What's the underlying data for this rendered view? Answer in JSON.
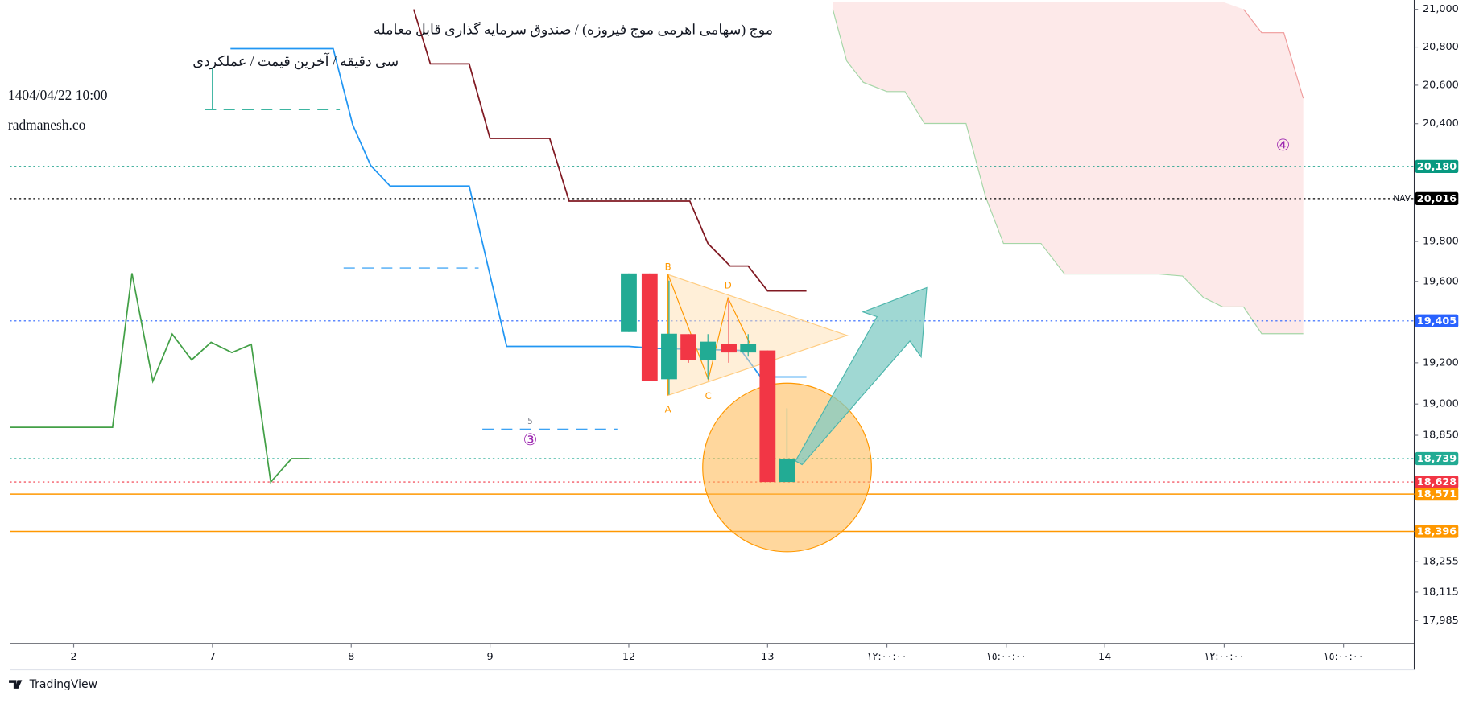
{
  "chart_data": {
    "type": "candlestick",
    "title": "موج (سهامی اهرمی موج فیروزه) / صندوق سرمایه گذاری قابل معامله",
    "subtitle": "سی دقیقه / آخرین قیمت / عملکردی",
    "date": "1404/04/22 10:00",
    "source": "radmanesh.co",
    "brand": "TradingView",
    "x": [
      4.0,
      4.15,
      4.29,
      4.43,
      4.57,
      4.72,
      4.86,
      5.0,
      5.14
    ],
    "open": [
      19350,
      19640,
      19120,
      19340,
      19213,
      19290,
      19250,
      19260,
      18628
    ],
    "high": [
      19640,
      19640,
      19604,
      19340,
      19340,
      19510,
      19340,
      19260,
      18980
    ],
    "low": [
      19350,
      19110,
      19045,
      19200,
      19120,
      19200,
      19230,
      18628,
      18628
    ],
    "close": [
      19640,
      19110,
      19342,
      19213,
      19303,
      19250,
      19290,
      18628,
      18739
    ],
    "up_color": "#22ab94",
    "down_color": "#f23645",
    "lines": [
      {
        "color": "#2196f3",
        "x": [
          1.13,
          1.87,
          2.01,
          2.14,
          2.28,
          2.85,
          3.12,
          4.0,
          4.2,
          4.81,
          4.95,
          5.28
        ],
        "values": [
          20792,
          20792,
          20396,
          20185,
          20080,
          20080,
          19280,
          19280,
          19270,
          19260,
          19131,
          19131
        ]
      },
      {
        "color": "#801922",
        "x": [
          2.45,
          2.57,
          2.85,
          3.0,
          3.43,
          3.57,
          4.44,
          4.57,
          4.73,
          4.86,
          5.0,
          5.28
        ],
        "values": [
          21000,
          20712,
          20712,
          20324,
          20324,
          20003,
          20003,
          19790,
          19677,
          19677,
          19553,
          19553
        ]
      },
      {
        "color": "#43a047",
        "x": [
          -0.46,
          0.28,
          0.42,
          0.57,
          0.71,
          0.85,
          0.99,
          1.14,
          1.28,
          1.42,
          1.57,
          1.7
        ],
        "values": [
          18888,
          18888,
          19641,
          19110,
          19340,
          19214,
          19300,
          19250,
          19290,
          18628,
          18739,
          18739
        ]
      }
    ],
    "cloud": {
      "color": "#fce4e4",
      "x": [
        5.47,
        5.57,
        5.69,
        5.86,
        5.99,
        6.13,
        6.43,
        6.57,
        6.7,
        6.97,
        7.14,
        7.82,
        7.99,
        8.14,
        8.28,
        8.43,
        8.56,
        8.72,
        8.86
      ],
      "lower": [
        21000,
        20728,
        20615,
        20567,
        20567,
        20401,
        20401,
        20027,
        19790,
        19790,
        19637,
        19637,
        19627,
        19521,
        19474,
        19474,
        19342,
        19342,
        19342
      ],
      "upper": [
        null,
        null,
        null,
        null,
        null,
        null,
        null,
        null,
        null,
        null,
        null,
        null,
        null,
        null,
        null,
        21000,
        20876,
        20876,
        20532
      ]
    },
    "levels": {
      "values": [
        20180,
        20016,
        19405,
        18739,
        18628,
        18571,
        18396
      ],
      "value_labels": [
        "20,180",
        "20,016",
        "19,405",
        "18,739",
        "18,628",
        "18,571",
        "18,396"
      ],
      "colors": [
        "#089981",
        "#000000",
        "#2962ff",
        "#22ab94",
        "#f23645",
        "#ff9800",
        "#ff9800"
      ],
      "dashed": [
        true,
        true,
        true,
        true,
        true,
        false,
        false
      ]
    },
    "nav_label": "NAV",
    "annotations": [
      "A",
      "B",
      "C",
      "D",
      "③",
      "④",
      "5"
    ],
    "log_scale": true,
    "xlim": [
      -0.46,
      9.66
    ],
    "xticks": [
      {
        "value": 0,
        "label": "2"
      },
      {
        "value": 1,
        "label": "7"
      },
      {
        "value": 2,
        "label": "8"
      },
      {
        "value": 3,
        "label": "9"
      },
      {
        "value": 4,
        "label": "12"
      },
      {
        "value": 5,
        "label": "13"
      },
      {
        "value": 5.86,
        "label": "١٢:٠٠:٠٠"
      },
      {
        "value": 6.72,
        "label": "١٥:٠٠:٠٠"
      },
      {
        "value": 7.43,
        "label": "14"
      },
      {
        "value": 8.29,
        "label": "١٢:٠٠:٠٠"
      },
      {
        "value": 9.15,
        "label": "١٥:٠٠:٠٠"
      }
    ],
    "ylim": [
      17880,
      21040
    ],
    "yticks": [
      {
        "value": 21000,
        "label": "21,000"
      },
      {
        "value": 20800,
        "label": "20,800"
      },
      {
        "value": 20600,
        "label": "20,600"
      },
      {
        "value": 20400,
        "label": "20,400"
      },
      {
        "value": 19800,
        "label": "19,800"
      },
      {
        "value": 19600,
        "label": "19,600"
      },
      {
        "value": 19200,
        "label": "19,200"
      },
      {
        "value": 19000,
        "label": "19,000"
      },
      {
        "value": 18850,
        "label": "18,850"
      },
      {
        "value": 18255,
        "label": "18,255"
      },
      {
        "value": 18115,
        "label": "18,115"
      },
      {
        "value": 17985,
        "label": "17,985"
      }
    ]
  }
}
